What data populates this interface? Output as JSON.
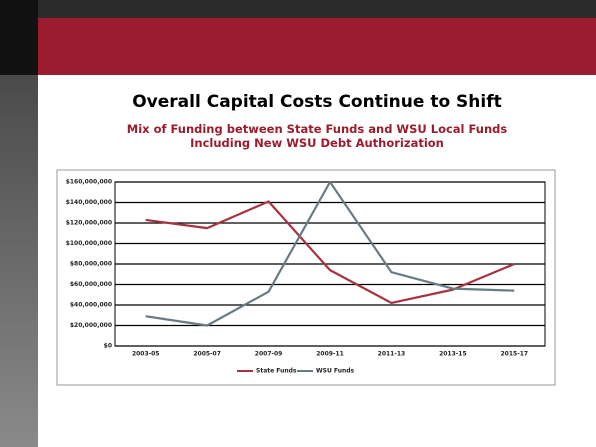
{
  "title": "Overall Capital Costs Continue to Shift",
  "subtitle": [
    "Mix of Funding between State Funds and WSU Local Funds",
    "Including New WSU Debt Authorization"
  ],
  "chart_data": {
    "type": "line",
    "categories": [
      "2003-05",
      "2005-07",
      "2007-09",
      "2009-11",
      "2011-13",
      "2013-15",
      "2015-17"
    ],
    "series": [
      {
        "name": "State Funds",
        "color": "#a8323f",
        "values": [
          123000000,
          115000000,
          141000000,
          74000000,
          42000000,
          55000000,
          80000000
        ]
      },
      {
        "name": "WSU Funds",
        "color": "#6b7b84",
        "values": [
          29000000,
          20000000,
          53000000,
          160000000,
          72000000,
          56000000,
          54000000
        ]
      }
    ],
    "ylim": [
      0,
      160000000
    ],
    "yticks": [
      {
        "value": 0,
        "label": "$0"
      },
      {
        "value": 20000000,
        "label": "$20,000,000"
      },
      {
        "value": 40000000,
        "label": "$40,000,000"
      },
      {
        "value": 60000000,
        "label": "$60,000,000"
      },
      {
        "value": 80000000,
        "label": "$80,000,000"
      },
      {
        "value": 100000000,
        "label": "$100,000,000"
      },
      {
        "value": 120000000,
        "label": "$120,000,000"
      },
      {
        "value": 140000000,
        "label": "$140,000,000"
      },
      {
        "value": 160000000,
        "label": "$160,000,000"
      }
    ],
    "grid": true,
    "legend": "bottom"
  }
}
